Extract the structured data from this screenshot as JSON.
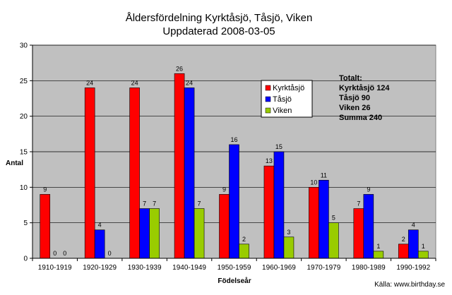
{
  "chart_data": {
    "type": "bar",
    "title": "Åldersfördelning Kyrktåsjö, Tåsjö, Viken",
    "subtitle": "Uppdaterad 2008-03-05",
    "xlabel": "Födelseår",
    "ylabel": "Antal",
    "ylim": [
      0,
      30
    ],
    "yticks": [
      "0",
      "5",
      "10",
      "15",
      "20",
      "25",
      "30"
    ],
    "grid": true,
    "legend_position": "top-right",
    "categories": [
      "1910-1919",
      "1920-1929",
      "1930-1939",
      "1940-1949",
      "1950-1959",
      "1960-1969",
      "1970-1979",
      "1980-1989",
      "1990-1992"
    ],
    "series": [
      {
        "name": "Kyrktåsjö",
        "color": "#ff0000",
        "values": [
          9,
          24,
          24,
          26,
          9,
          13,
          10,
          7,
          2
        ]
      },
      {
        "name": "Tåsjö",
        "color": "#0000ff",
        "values": [
          0,
          4,
          7,
          24,
          16,
          15,
          11,
          9,
          4
        ]
      },
      {
        "name": "Viken",
        "color": "#99cc00",
        "values": [
          0,
          0,
          7,
          7,
          2,
          3,
          5,
          1,
          1
        ]
      }
    ],
    "annotations": {
      "totals": [
        "Totalt:",
        "Kyrktåsjö 124",
        "Tåsjö 90",
        "Viken 26",
        "Summa 240"
      ],
      "source": "Källa: www.birthday.se"
    }
  },
  "colors": {
    "plot_background": "#c0c0c0",
    "gridline": "#000000"
  }
}
